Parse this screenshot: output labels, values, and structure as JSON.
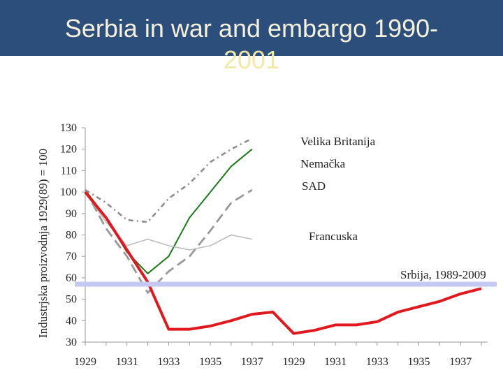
{
  "title": {
    "line1": "Serbia in war and embargo 1990-",
    "line2": "2001"
  },
  "chart_data": {
    "type": "line",
    "title": "Serbia in war and embargo 1990-2001",
    "xlabel": "",
    "ylabel": "Industrjska proizvodnja 1929(89) = 100",
    "ylim": [
      30,
      130
    ],
    "yticks": [
      30,
      40,
      50,
      60,
      70,
      80,
      90,
      100,
      110,
      120,
      130
    ],
    "xlim": [
      0,
      19.3
    ],
    "x_tick_positions": [
      0,
      2,
      4,
      6,
      8,
      10,
      12,
      14,
      16,
      18
    ],
    "x_tick_labels": [
      "1929",
      "1931",
      "1933",
      "1935",
      "1937",
      "1929",
      "1931",
      "1933",
      "1935",
      "1937"
    ],
    "grid": false,
    "legend": "right, inline labels",
    "series": [
      {
        "name": "Velika Britanija",
        "color": "#888888",
        "style": "dash-dot",
        "x": [
          0,
          1,
          2,
          3,
          4,
          5,
          6,
          7,
          8
        ],
        "y": [
          101,
          95,
          87,
          86,
          97,
          104,
          114,
          120,
          125
        ]
      },
      {
        "name": "Nemačka",
        "color": "#1a7a1a",
        "style": "solid",
        "x": [
          0,
          1,
          2,
          3,
          4,
          5,
          6,
          7,
          8
        ],
        "y": [
          101,
          88,
          72,
          62,
          70,
          88,
          100,
          112,
          120
        ]
      },
      {
        "name": "SAD",
        "color": "#999999",
        "style": "long-dash",
        "x": [
          0,
          1,
          2,
          3,
          4,
          5,
          6,
          7,
          8
        ],
        "y": [
          101,
          83,
          70,
          53,
          63,
          70,
          82,
          95,
          101
        ]
      },
      {
        "name": "Francuska",
        "color": "#bbbbbb",
        "style": "solid",
        "x": [
          0,
          1,
          2,
          3,
          4,
          5,
          6,
          7,
          8
        ],
        "y": [
          100,
          86,
          75,
          78,
          75,
          73,
          75,
          80,
          78
        ]
      },
      {
        "name": "Srbija, 1989-2009",
        "color": "#e0191f",
        "style": "solid-thick",
        "x": [
          0,
          1,
          2,
          3,
          4,
          5,
          6,
          7,
          8,
          9,
          10,
          11,
          12,
          13,
          14,
          15,
          16,
          17,
          18,
          19
        ],
        "y": [
          100,
          88,
          73,
          58,
          36,
          36,
          37.5,
          40,
          43,
          44,
          34,
          35.5,
          38,
          38,
          39.5,
          44,
          46.5,
          49,
          52.5,
          55
        ]
      }
    ],
    "reference_band": {
      "value": 57,
      "color": "#c4c8f2"
    }
  }
}
